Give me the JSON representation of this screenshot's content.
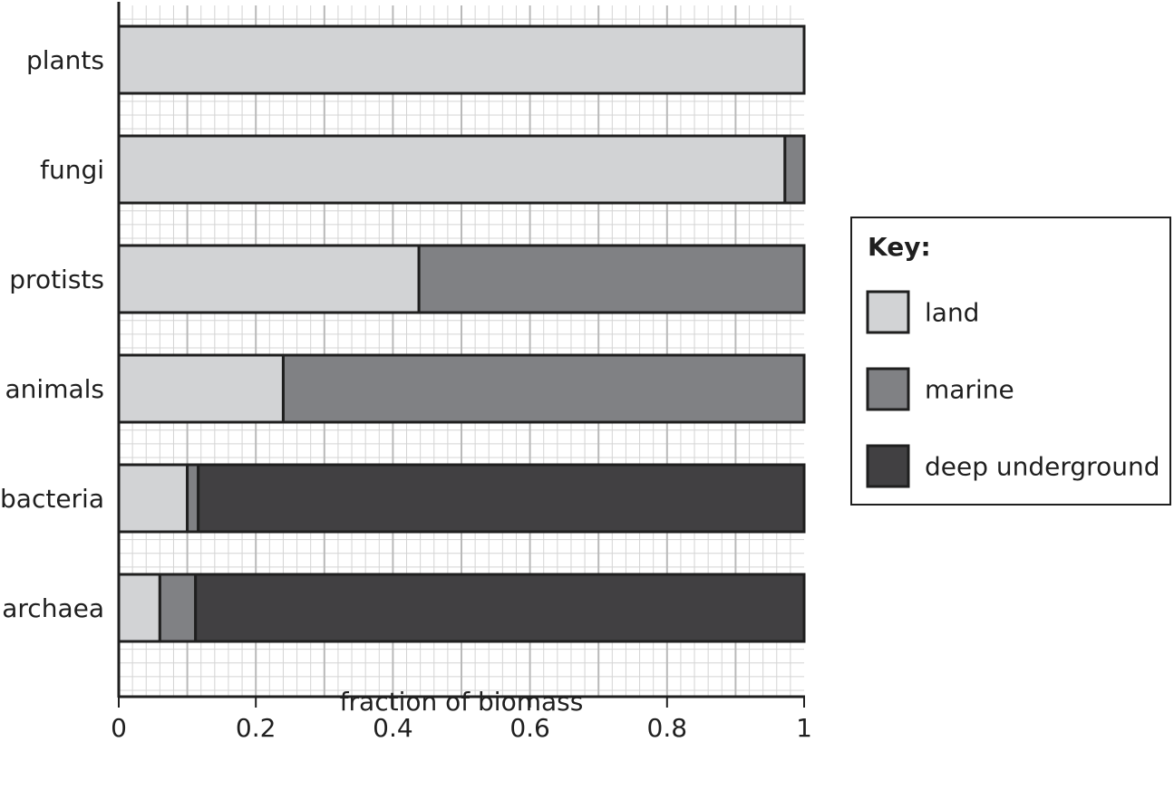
{
  "chart_data": {
    "type": "bar",
    "orientation": "horizontal",
    "stacked": true,
    "categories": [
      "plants",
      "fungi",
      "protists",
      "animals",
      "bacteria",
      "archaea"
    ],
    "series": [
      {
        "name": "land",
        "color": "#d2d3d5",
        "values": [
          1.0,
          0.972,
          0.438,
          0.24,
          0.1,
          0.06
        ]
      },
      {
        "name": "marine",
        "color": "#808184",
        "values": [
          0.0,
          0.028,
          0.562,
          0.76,
          0.016,
          0.052
        ]
      },
      {
        "name": "deep underground",
        "color": "#414042",
        "values": [
          0.0,
          0.0,
          0.0,
          0.0,
          0.884,
          0.888
        ]
      }
    ],
    "xlim": [
      0,
      1
    ],
    "xticks": [
      0,
      0.2,
      0.4,
      0.6,
      0.8,
      1
    ],
    "tick_labels": [
      "0",
      "0.2",
      "0.4",
      "0.6",
      "0.8",
      "1"
    ],
    "xlabel": "fraction of biomass",
    "ylabel": "",
    "grid": true,
    "legend": {
      "title": "Key:",
      "placement": "right"
    }
  }
}
